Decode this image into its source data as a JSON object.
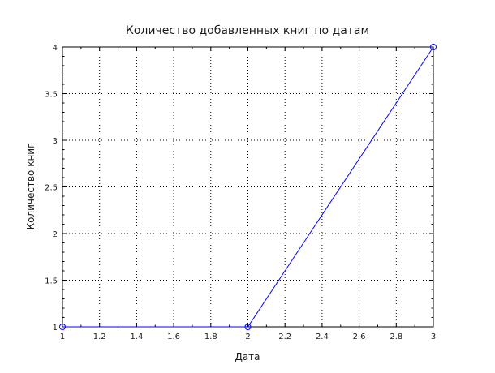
{
  "chart_data": {
    "type": "line",
    "title": "Количество добавленных книг по датам",
    "xlabel": "Дата",
    "ylabel": "Количество книг",
    "xlim": [
      1,
      3
    ],
    "ylim": [
      1,
      4
    ],
    "x_ticks": [
      1,
      1.2,
      1.4,
      1.6,
      1.8,
      2,
      2.2,
      2.4,
      2.6,
      2.8,
      3
    ],
    "y_ticks": [
      1,
      1.5,
      2,
      2.5,
      3,
      3.5,
      4
    ],
    "x_tick_labels": [
      "1",
      "1.2",
      "1.4",
      "1.6",
      "1.8",
      "2",
      "2.2",
      "2.4",
      "2.6",
      "2.8",
      "3"
    ],
    "y_tick_labels": [
      "1",
      "1.5",
      "2",
      "2.5",
      "3",
      "3.5",
      "4"
    ],
    "grid": true,
    "series": [
      {
        "color": "#0000ff",
        "marker": "circle",
        "x": [
          1,
          2,
          3
        ],
        "y": [
          1,
          1,
          4
        ]
      }
    ]
  }
}
